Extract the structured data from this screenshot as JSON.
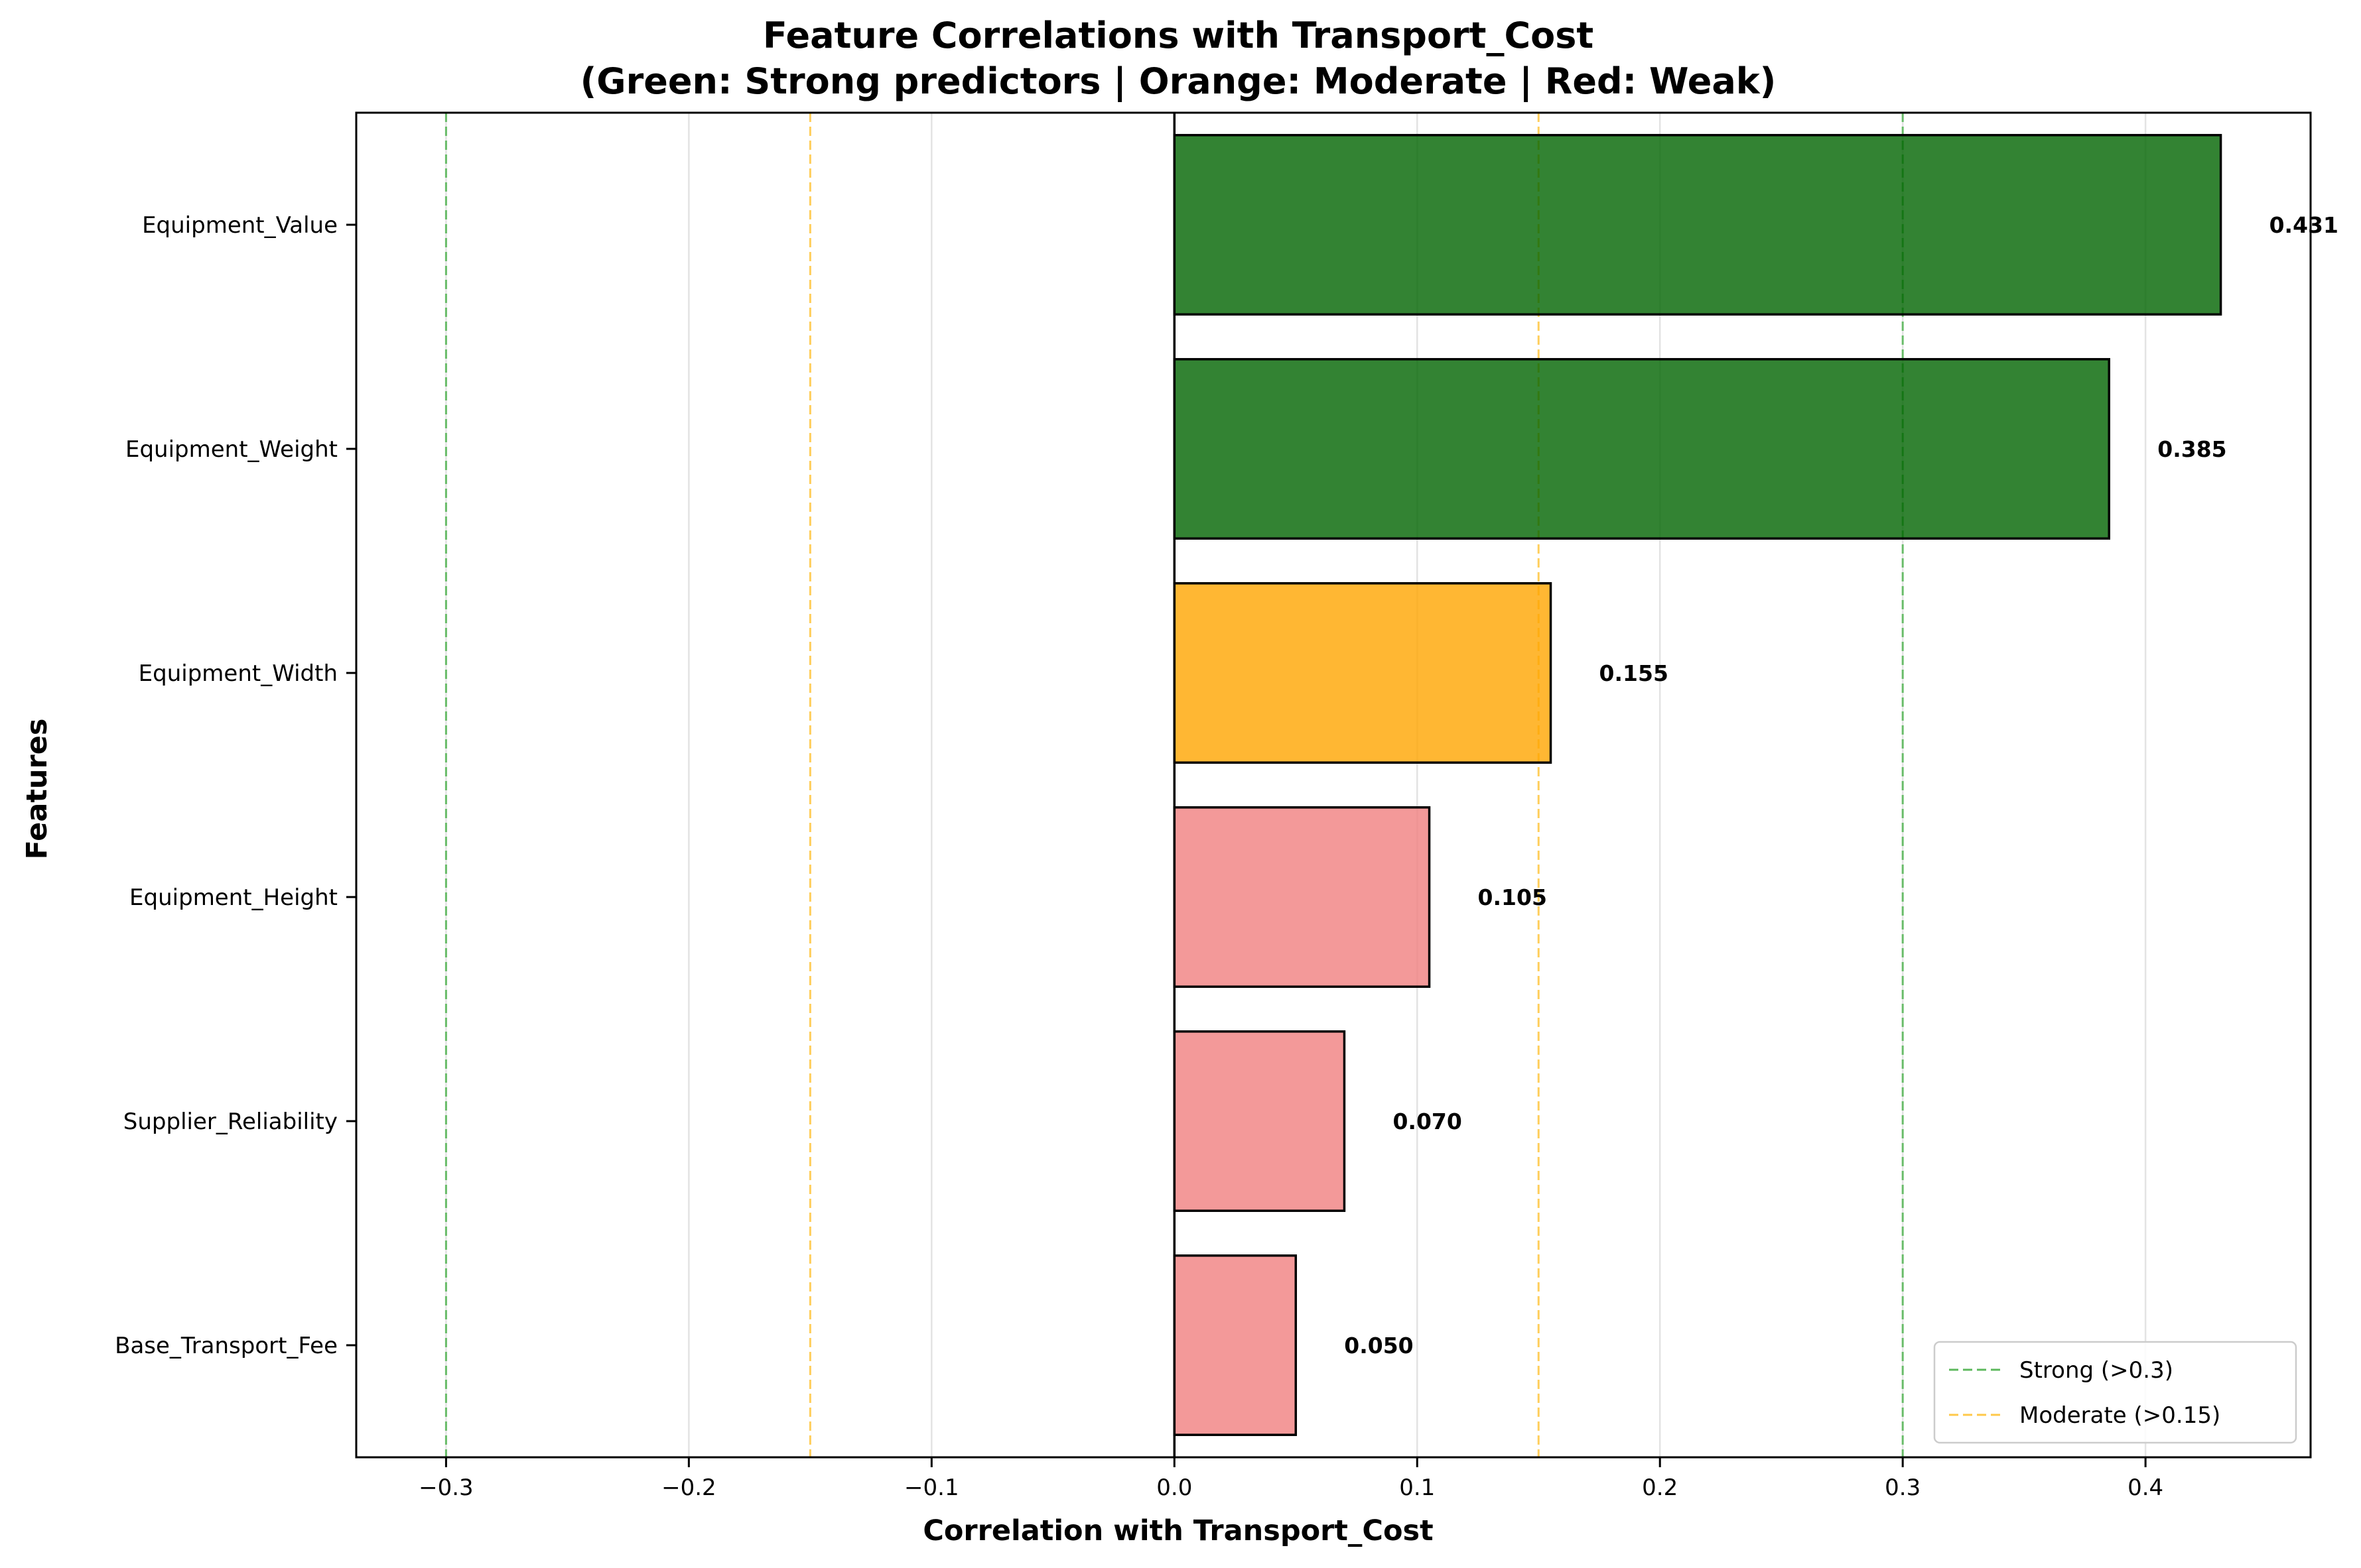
{
  "chart_data": {
    "type": "bar",
    "orientation": "horizontal",
    "title": "Feature Correlations with Transport_Cost",
    "subtitle": "(Green: Strong predictors | Orange: Moderate | Red: Weak)",
    "xlabel": "Correlation with Transport_Cost",
    "ylabel": "Features",
    "xlim": [
      -0.337,
      0.468
    ],
    "xticks": [
      -0.3,
      -0.2,
      -0.1,
      0.0,
      0.1,
      0.2,
      0.3,
      0.4
    ],
    "xtick_labels": [
      "−0.3",
      "−0.2",
      "−0.1",
      "0.0",
      "0.1",
      "0.2",
      "0.3",
      "0.4"
    ],
    "grid": "vertical",
    "categories": [
      "Equipment_Value",
      "Equipment_Weight",
      "Equipment_Width",
      "Equipment_Height",
      "Supplier_Reliability",
      "Base_Transport_Fee"
    ],
    "values": [
      0.431,
      0.385,
      0.155,
      0.105,
      0.07,
      0.05
    ],
    "value_labels": [
      "0.431",
      "0.385",
      "0.155",
      "0.105",
      "0.070",
      "0.050"
    ],
    "bar_strength": [
      "strong",
      "strong",
      "moderate",
      "weak",
      "weak",
      "weak"
    ],
    "colors": {
      "strong": "#006400",
      "moderate": "#FFA500",
      "weak": "#F08080",
      "bar_edge": "#000000",
      "grid": "#e3e3e3",
      "zero_line": "#000000"
    },
    "reference_lines": [
      {
        "name": "Strong (>0.3)",
        "x": [
          -0.3,
          0.3
        ],
        "color": "#5cb85c",
        "style": "dashed"
      },
      {
        "name": "Moderate (>0.15)",
        "x": [
          -0.15,
          0.15
        ],
        "color": "#FFC94A",
        "style": "dashed"
      }
    ],
    "legend": {
      "placement": "lower-right",
      "entries": [
        "Strong (>0.3)",
        "Moderate (>0.15)"
      ]
    }
  }
}
